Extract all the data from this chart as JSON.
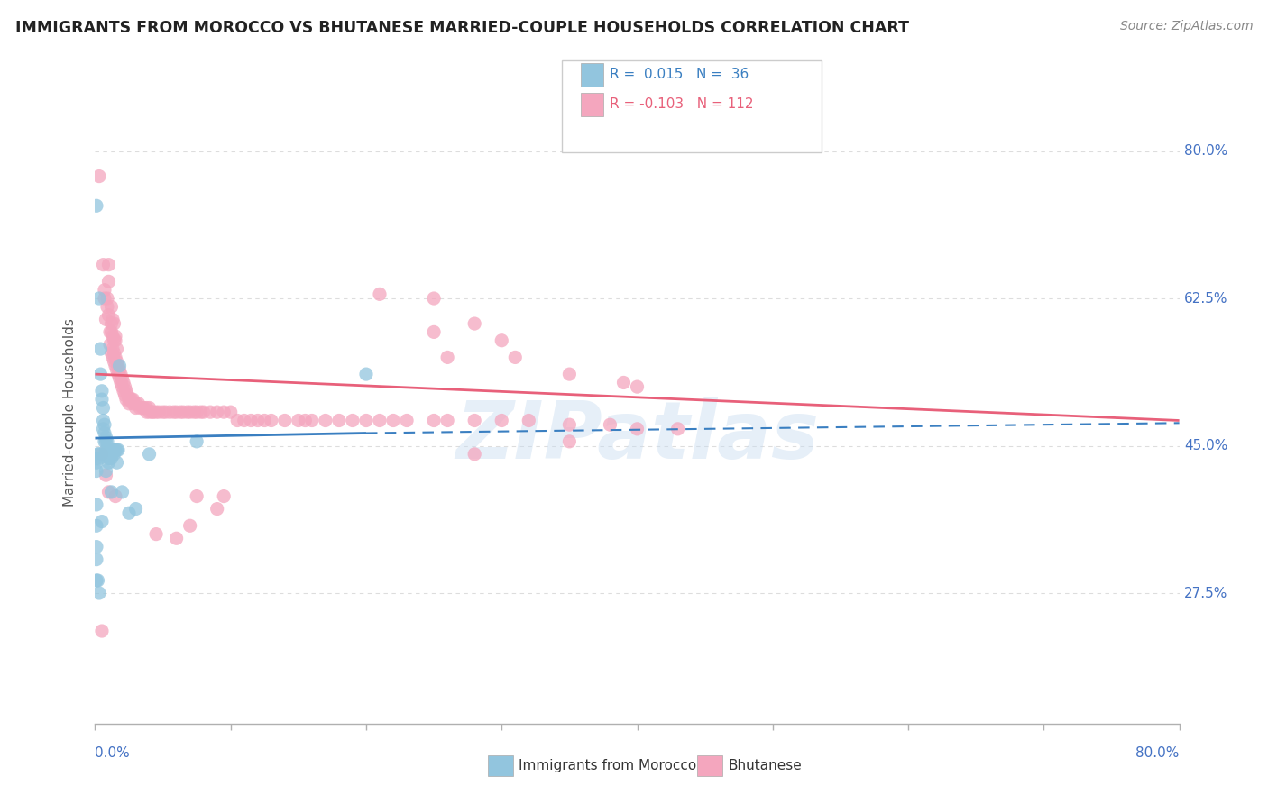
{
  "title": "IMMIGRANTS FROM MOROCCO VS BHUTANESE MARRIED-COUPLE HOUSEHOLDS CORRELATION CHART",
  "source": "Source: ZipAtlas.com",
  "ylabel": "Married-couple Households",
  "ytick_vals": [
    0.8,
    0.625,
    0.45,
    0.275
  ],
  "xlim": [
    0.0,
    0.8
  ],
  "ylim": [
    0.12,
    0.86
  ],
  "blue_color": "#92c5de",
  "pink_color": "#f4a6be",
  "blue_line_color": "#3a7fc1",
  "pink_line_color": "#e8607a",
  "blue_scatter": [
    [
      0.001,
      0.735
    ],
    [
      0.003,
      0.625
    ],
    [
      0.004,
      0.565
    ],
    [
      0.004,
      0.535
    ],
    [
      0.005,
      0.515
    ],
    [
      0.005,
      0.505
    ],
    [
      0.006,
      0.495
    ],
    [
      0.006,
      0.48
    ],
    [
      0.006,
      0.47
    ],
    [
      0.007,
      0.475
    ],
    [
      0.007,
      0.465
    ],
    [
      0.007,
      0.455
    ],
    [
      0.008,
      0.46
    ],
    [
      0.008,
      0.455
    ],
    [
      0.008,
      0.445
    ],
    [
      0.009,
      0.455
    ],
    [
      0.009,
      0.445
    ],
    [
      0.009,
      0.44
    ],
    [
      0.01,
      0.445
    ],
    [
      0.01,
      0.44
    ],
    [
      0.01,
      0.435
    ],
    [
      0.01,
      0.43
    ],
    [
      0.011,
      0.44
    ],
    [
      0.011,
      0.435
    ],
    [
      0.011,
      0.44
    ],
    [
      0.012,
      0.435
    ],
    [
      0.012,
      0.44
    ],
    [
      0.012,
      0.445
    ],
    [
      0.013,
      0.445
    ],
    [
      0.014,
      0.44
    ],
    [
      0.014,
      0.445
    ],
    [
      0.015,
      0.445
    ],
    [
      0.016,
      0.445
    ],
    [
      0.017,
      0.445
    ],
    [
      0.04,
      0.44
    ],
    [
      0.075,
      0.455
    ],
    [
      0.008,
      0.42
    ],
    [
      0.016,
      0.43
    ],
    [
      0.012,
      0.395
    ],
    [
      0.02,
      0.395
    ],
    [
      0.025,
      0.37
    ],
    [
      0.03,
      0.375
    ],
    [
      0.018,
      0.545
    ],
    [
      0.005,
      0.36
    ],
    [
      0.002,
      0.29
    ],
    [
      0.003,
      0.275
    ],
    [
      0.001,
      0.29
    ],
    [
      0.001,
      0.315
    ],
    [
      0.001,
      0.33
    ],
    [
      0.001,
      0.355
    ],
    [
      0.001,
      0.38
    ],
    [
      0.001,
      0.42
    ],
    [
      0.001,
      0.43
    ],
    [
      0.001,
      0.435
    ],
    [
      0.002,
      0.44
    ],
    [
      0.003,
      0.435
    ],
    [
      0.003,
      0.44
    ],
    [
      0.2,
      0.535
    ]
  ],
  "pink_scatter": [
    [
      0.003,
      0.77
    ],
    [
      0.006,
      0.665
    ],
    [
      0.01,
      0.665
    ],
    [
      0.01,
      0.645
    ],
    [
      0.007,
      0.635
    ],
    [
      0.007,
      0.625
    ],
    [
      0.009,
      0.625
    ],
    [
      0.012,
      0.615
    ],
    [
      0.009,
      0.615
    ],
    [
      0.01,
      0.605
    ],
    [
      0.008,
      0.6
    ],
    [
      0.013,
      0.6
    ],
    [
      0.012,
      0.595
    ],
    [
      0.014,
      0.595
    ],
    [
      0.012,
      0.585
    ],
    [
      0.011,
      0.585
    ],
    [
      0.013,
      0.58
    ],
    [
      0.015,
      0.58
    ],
    [
      0.014,
      0.575
    ],
    [
      0.015,
      0.575
    ],
    [
      0.011,
      0.57
    ],
    [
      0.013,
      0.565
    ],
    [
      0.016,
      0.565
    ],
    [
      0.014,
      0.56
    ],
    [
      0.012,
      0.56
    ],
    [
      0.015,
      0.555
    ],
    [
      0.013,
      0.555
    ],
    [
      0.016,
      0.55
    ],
    [
      0.014,
      0.55
    ],
    [
      0.015,
      0.545
    ],
    [
      0.017,
      0.545
    ],
    [
      0.016,
      0.54
    ],
    [
      0.018,
      0.54
    ],
    [
      0.017,
      0.535
    ],
    [
      0.019,
      0.535
    ],
    [
      0.018,
      0.53
    ],
    [
      0.02,
      0.53
    ],
    [
      0.019,
      0.525
    ],
    [
      0.021,
      0.525
    ],
    [
      0.02,
      0.52
    ],
    [
      0.022,
      0.52
    ],
    [
      0.021,
      0.515
    ],
    [
      0.023,
      0.515
    ],
    [
      0.022,
      0.51
    ],
    [
      0.024,
      0.51
    ],
    [
      0.023,
      0.505
    ],
    [
      0.025,
      0.505
    ],
    [
      0.026,
      0.505
    ],
    [
      0.027,
      0.505
    ],
    [
      0.028,
      0.505
    ],
    [
      0.025,
      0.5
    ],
    [
      0.03,
      0.5
    ],
    [
      0.028,
      0.5
    ],
    [
      0.032,
      0.5
    ],
    [
      0.03,
      0.495
    ],
    [
      0.035,
      0.495
    ],
    [
      0.033,
      0.495
    ],
    [
      0.038,
      0.495
    ],
    [
      0.036,
      0.495
    ],
    [
      0.04,
      0.495
    ],
    [
      0.038,
      0.49
    ],
    [
      0.042,
      0.49
    ],
    [
      0.04,
      0.49
    ],
    [
      0.045,
      0.49
    ],
    [
      0.043,
      0.49
    ],
    [
      0.05,
      0.49
    ],
    [
      0.047,
      0.49
    ],
    [
      0.055,
      0.49
    ],
    [
      0.052,
      0.49
    ],
    [
      0.06,
      0.49
    ],
    [
      0.058,
      0.49
    ],
    [
      0.065,
      0.49
    ],
    [
      0.063,
      0.49
    ],
    [
      0.07,
      0.49
    ],
    [
      0.068,
      0.49
    ],
    [
      0.075,
      0.49
    ],
    [
      0.073,
      0.49
    ],
    [
      0.08,
      0.49
    ],
    [
      0.078,
      0.49
    ],
    [
      0.09,
      0.49
    ],
    [
      0.085,
      0.49
    ],
    [
      0.1,
      0.49
    ],
    [
      0.095,
      0.49
    ],
    [
      0.11,
      0.48
    ],
    [
      0.105,
      0.48
    ],
    [
      0.12,
      0.48
    ],
    [
      0.115,
      0.48
    ],
    [
      0.13,
      0.48
    ],
    [
      0.125,
      0.48
    ],
    [
      0.15,
      0.48
    ],
    [
      0.14,
      0.48
    ],
    [
      0.16,
      0.48
    ],
    [
      0.155,
      0.48
    ],
    [
      0.18,
      0.48
    ],
    [
      0.17,
      0.48
    ],
    [
      0.2,
      0.48
    ],
    [
      0.19,
      0.48
    ],
    [
      0.22,
      0.48
    ],
    [
      0.21,
      0.48
    ],
    [
      0.25,
      0.48
    ],
    [
      0.23,
      0.48
    ],
    [
      0.28,
      0.48
    ],
    [
      0.26,
      0.48
    ],
    [
      0.32,
      0.48
    ],
    [
      0.3,
      0.48
    ],
    [
      0.38,
      0.475
    ],
    [
      0.35,
      0.475
    ],
    [
      0.43,
      0.47
    ],
    [
      0.4,
      0.47
    ],
    [
      0.005,
      0.44
    ],
    [
      0.008,
      0.415
    ],
    [
      0.01,
      0.395
    ],
    [
      0.015,
      0.39
    ],
    [
      0.28,
      0.44
    ],
    [
      0.35,
      0.455
    ],
    [
      0.045,
      0.345
    ],
    [
      0.005,
      0.23
    ],
    [
      0.06,
      0.34
    ],
    [
      0.075,
      0.39
    ],
    [
      0.07,
      0.355
    ],
    [
      0.09,
      0.375
    ],
    [
      0.095,
      0.39
    ],
    [
      0.25,
      0.625
    ],
    [
      0.28,
      0.595
    ],
    [
      0.3,
      0.575
    ],
    [
      0.26,
      0.555
    ],
    [
      0.31,
      0.555
    ],
    [
      0.35,
      0.535
    ],
    [
      0.39,
      0.525
    ],
    [
      0.4,
      0.52
    ],
    [
      0.25,
      0.585
    ],
    [
      0.21,
      0.63
    ]
  ],
  "blue_line": [
    [
      0.0,
      0.459
    ],
    [
      0.2,
      0.465
    ]
  ],
  "blue_line_dashed": [
    [
      0.2,
      0.465
    ],
    [
      0.8,
      0.477
    ]
  ],
  "pink_line": [
    [
      0.0,
      0.535
    ],
    [
      0.8,
      0.48
    ]
  ],
  "background_color": "#ffffff",
  "grid_color": "#dddddd",
  "title_color": "#333333",
  "axis_label_color": "#4472c4",
  "watermark": "ZIPatlas"
}
